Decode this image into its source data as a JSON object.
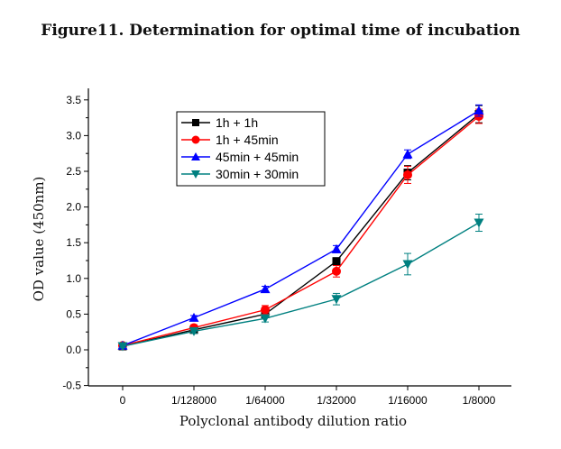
{
  "chart_data": {
    "type": "line",
    "title": "Figure11. Determination for optimal time of incubation",
    "xlabel": "Polyclonal antibody dilution ratio",
    "ylabel": "OD value (450nm)",
    "categories": [
      "0",
      "1/128000",
      "1/64000",
      "1/32000",
      "1/16000",
      "1/8000"
    ],
    "ylim": [
      -0.5,
      3.6
    ],
    "yticks": [
      "-0.5",
      "0.0",
      "0.5",
      "1.0",
      "1.5",
      "2.0",
      "2.5",
      "3.0",
      "3.5"
    ],
    "grid": false,
    "legend_position": "top-left",
    "series": [
      {
        "name": "1h + 1h",
        "color": "#000000",
        "marker": "square",
        "values": [
          0.05,
          0.28,
          0.5,
          1.24,
          2.48,
          3.3
        ],
        "errors": [
          0.02,
          0.03,
          0.04,
          0.05,
          0.1,
          0.12
        ]
      },
      {
        "name": "1h + 45min",
        "color": "#ff0000",
        "marker": "circle",
        "values": [
          0.06,
          0.31,
          0.56,
          1.1,
          2.45,
          3.27
        ],
        "errors": [
          0.02,
          0.04,
          0.06,
          0.08,
          0.12,
          0.1
        ]
      },
      {
        "name": "45min + 45min",
        "color": "#0000ff",
        "marker": "triangle-up",
        "values": [
          0.06,
          0.45,
          0.85,
          1.41,
          2.74,
          3.35
        ],
        "errors": [
          0.02,
          0.03,
          0.04,
          0.05,
          0.06,
          0.08
        ]
      },
      {
        "name": "30min + 30min",
        "color": "#008080",
        "marker": "triangle-down",
        "values": [
          0.05,
          0.26,
          0.44,
          0.71,
          1.2,
          1.78
        ],
        "errors": [
          0.02,
          0.03,
          0.05,
          0.08,
          0.15,
          0.12
        ]
      }
    ]
  }
}
